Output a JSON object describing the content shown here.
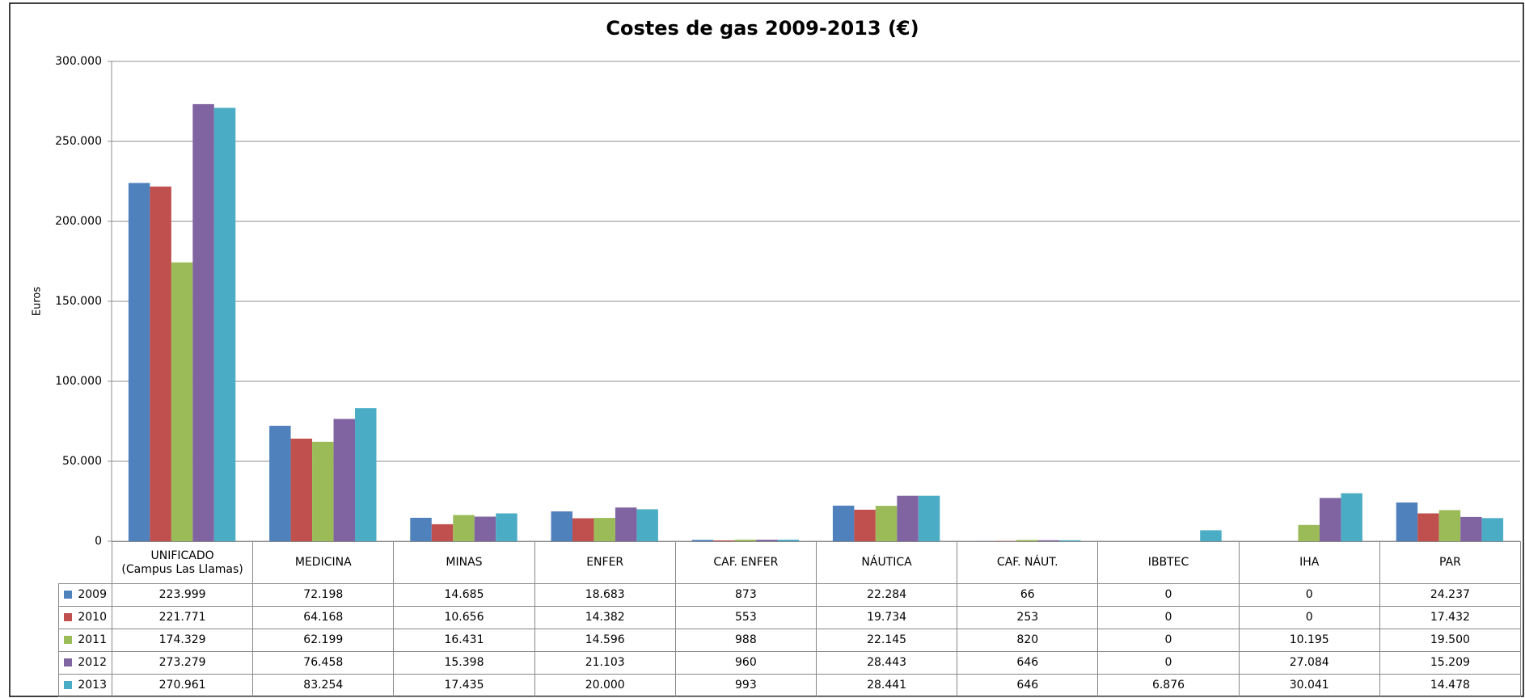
{
  "chart_data": {
    "type": "bar",
    "title": "Costes de gas 2009-2013 (€)",
    "y_label": "Euros",
    "categories": [
      "UNIFICADO\n(Campus Las Llamas)",
      "MEDICINA",
      "MINAS",
      "ENFER",
      "CAF. ENFER",
      "NÁUTICA",
      "CAF. NÁUT.",
      "IBBTEC",
      "IHA",
      "PAR"
    ],
    "series": [
      {
        "name": "2009",
        "color": "#4f81bd",
        "values": [
          223999,
          72198,
          14685,
          18683,
          873,
          22284,
          66,
          0,
          0,
          24237
        ],
        "value_labels": [
          "223.999",
          "72.198",
          "14.685",
          "18.683",
          "873",
          "22.284",
          "66",
          "0",
          "0",
          "24.237"
        ]
      },
      {
        "name": "2010",
        "color": "#c0504d",
        "values": [
          221771,
          64168,
          10656,
          14382,
          553,
          19734,
          253,
          0,
          0,
          17432
        ],
        "value_labels": [
          "221.771",
          "64.168",
          "10.656",
          "14.382",
          "553",
          "19.734",
          "253",
          "0",
          "0",
          "17.432"
        ]
      },
      {
        "name": "2011",
        "color": "#9bbb59",
        "values": [
          174329,
          62199,
          16431,
          14596,
          988,
          22145,
          820,
          0,
          10195,
          19500
        ],
        "value_labels": [
          "174.329",
          "62.199",
          "16.431",
          "14.596",
          "988",
          "22.145",
          "820",
          "0",
          "10.195",
          "19.500"
        ]
      },
      {
        "name": "2012",
        "color": "#8064a2",
        "values": [
          273279,
          76458,
          15398,
          21103,
          960,
          28443,
          646,
          0,
          27084,
          15209
        ],
        "value_labels": [
          "273.279",
          "76.458",
          "15.398",
          "21.103",
          "960",
          "28.443",
          "646",
          "0",
          "27.084",
          "15.209"
        ]
      },
      {
        "name": "2013",
        "color": "#4bacc6",
        "values": [
          270961,
          83254,
          17435,
          20000,
          993,
          28441,
          646,
          6876,
          30041,
          14478
        ],
        "value_labels": [
          "270.961",
          "83.254",
          "17.435",
          "20.000",
          "993",
          "28.441",
          "646",
          "6.876",
          "30.041",
          "14.478"
        ]
      }
    ],
    "ylim": [
      0,
      300000
    ],
    "yticks": [
      0,
      {
        "value": 50000,
        "label": "50.000"
      },
      {
        "value": 100000,
        "label": "100.000"
      },
      {
        "value": 150000,
        "label": "150.000"
      },
      {
        "value": 200000,
        "label": "200.000"
      },
      {
        "value": 250000,
        "label": "250.000"
      },
      {
        "value": 300000,
        "label": "300.000"
      }
    ],
    "grid": true
  }
}
